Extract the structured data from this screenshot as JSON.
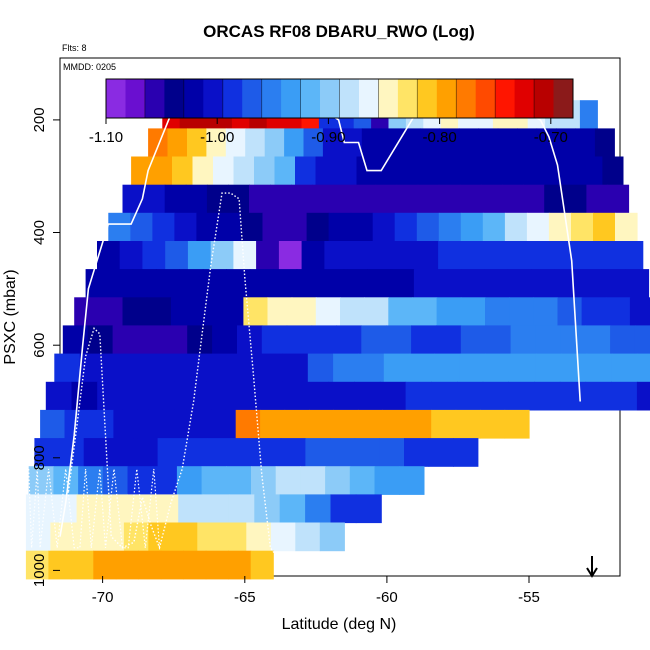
{
  "header": {
    "title": "ORCAS RF08 DBARU_RWO (Log)",
    "flts": "Flts: 8",
    "mmdd": "MMDD: 0205"
  },
  "chart_data": {
    "type": "heatmap",
    "title": "ORCAS RF08 DBARU_RWO (Log)",
    "xlabel": "Latitude (deg N)",
    "ylabel": "PSXC (mbar)",
    "xlim": [
      -71.5,
      -51.8
    ],
    "ylim": [
      1010,
      90
    ],
    "xticks": [
      -70,
      -65,
      -60,
      -55
    ],
    "xtick_labels": [
      "-70",
      "-65",
      "-60",
      "-55"
    ],
    "yticks": [
      200,
      400,
      600,
      800,
      1000
    ],
    "ytick_labels": [
      "200",
      "400",
      "600",
      "800",
      "1000"
    ],
    "colorbar": {
      "range": [
        -1.1,
        -0.68
      ],
      "ticks": [
        -1.1,
        -1.0,
        -0.9,
        -0.8,
        -0.7
      ],
      "tick_labels": [
        "-1.10",
        "-1.00",
        "-0.90",
        "-0.80",
        "-0.70"
      ],
      "colors": [
        "#8a2be2",
        "#6a0fd0",
        "#2a00b0",
        "#00008b",
        "#0000a8",
        "#0a10c8",
        "#1030e0",
        "#1e5be8",
        "#2b7ef0",
        "#3a9df5",
        "#5cb6f8",
        "#8ccbf8",
        "#bfe2fb",
        "#e8f5ff",
        "#fff6c0",
        "#ffe466",
        "#ffc820",
        "#ffa000",
        "#ff7a00",
        "#ff4a00",
        "#ff1500",
        "#e00000",
        "#b80000",
        "#8b1a1a"
      ]
    },
    "rows": [
      {
        "p": 190,
        "lat": [
          -67.9,
          -52.6
        ],
        "v": [
          -0.72,
          -0.71,
          -0.7,
          -0.71,
          -0.72,
          -0.71,
          -0.72,
          -0.73,
          -0.74,
          -0.98,
          -0.99,
          -0.97,
          -1.05,
          -0.9,
          -0.88,
          -0.86,
          -0.85,
          -0.87,
          -0.86,
          -0.84,
          -0.85,
          -0.86,
          -0.88,
          -0.89,
          -0.95
        ]
      },
      {
        "p": 240,
        "lat": [
          -68.4,
          -52.0
        ],
        "v": [
          -0.78,
          -0.8,
          -0.81,
          -0.84,
          -0.86,
          -0.88,
          -0.9,
          -0.93,
          -0.97,
          -1.0,
          -1.01,
          -1.02,
          -1.03,
          -1.02,
          -1.02,
          -1.03,
          -1.03,
          -1.02,
          -1.02,
          -1.03,
          -1.03,
          -1.02,
          -1.03,
          -1.04
        ]
      },
      {
        "p": 290,
        "lat": [
          -69.0,
          -51.7
        ],
        "v": [
          -0.79,
          -0.8,
          -0.82,
          -0.84,
          -0.86,
          -0.88,
          -0.9,
          -0.92,
          -0.99,
          -1.0,
          -1.01,
          -1.02,
          -1.03,
          -1.03,
          -1.03,
          -1.02,
          -1.02,
          -1.03,
          -1.03,
          -1.02,
          -1.02,
          -1.03,
          -1.03,
          -1.04
        ]
      },
      {
        "p": 340,
        "lat": [
          -69.3,
          -51.5
        ],
        "v": [
          -1.0,
          -1.01,
          -1.02,
          -1.03,
          -1.04,
          -1.04,
          -1.05,
          -1.05,
          -1.06,
          -1.06,
          -1.06,
          -1.06,
          -1.06,
          -1.06,
          -1.06,
          -1.06,
          -1.06,
          -1.05,
          -1.05,
          -1.05,
          -1.04,
          -1.04,
          -1.05,
          -1.06
        ]
      },
      {
        "p": 390,
        "lat": [
          -69.8,
          -51.2
        ],
        "v": [
          -0.95,
          -0.97,
          -0.98,
          -1.0,
          -1.02,
          -1.03,
          -1.04,
          -1.06,
          -1.05,
          -1.04,
          -1.03,
          -1.02,
          -1.0,
          -0.99,
          -0.97,
          -0.95,
          -0.93,
          -0.91,
          -0.88,
          -0.86,
          -0.84,
          -0.83,
          -0.82,
          -0.84
        ]
      },
      {
        "p": 440,
        "lat": [
          -70.2,
          -51.0
        ],
        "v": [
          -1.02,
          -1.0,
          -0.99,
          -0.97,
          -0.94,
          -0.9,
          -0.87,
          -1.06,
          -1.09,
          -1.03,
          -1.01,
          -1.01,
          -1.01,
          -1.0,
          -1.0,
          -0.99,
          -0.99,
          -0.99,
          -0.99,
          -0.98,
          -0.98,
          -0.98,
          -0.98,
          -0.99
        ]
      },
      {
        "p": 490,
        "lat": [
          -70.6,
          -50.8
        ],
        "v": [
          -1.03,
          -1.03,
          -1.03,
          -1.03,
          -1.03,
          -1.02,
          -1.02,
          -1.03,
          -1.03,
          -1.03,
          -1.03,
          -1.02,
          -1.02,
          -1.02,
          -1.01,
          -1.01,
          -1.01,
          -1.01,
          -1.01,
          -1.0,
          -1.0,
          -1.0,
          -1.0,
          -1.01
        ]
      },
      {
        "p": 540,
        "lat": [
          -71.0,
          -50.6
        ],
        "v": [
          -1.06,
          -1.05,
          -1.04,
          -1.04,
          -1.03,
          -1.03,
          -1.02,
          -0.83,
          -0.84,
          -0.85,
          -0.87,
          -0.88,
          -0.89,
          -0.91,
          -0.92,
          -0.93,
          -0.94,
          -0.95,
          -0.95,
          -0.96,
          -0.97,
          -0.98,
          -0.99,
          -1.0
        ]
      },
      {
        "p": 590,
        "lat": [
          -71.4,
          -50.4
        ],
        "v": [
          -1.03,
          -1.04,
          -1.05,
          -1.06,
          -1.05,
          -1.04,
          -1.03,
          -1.01,
          -0.99,
          -0.98,
          -0.99,
          -0.98,
          -0.97,
          -0.97,
          -0.98,
          -0.98,
          -0.97,
          -0.97,
          -0.96,
          -0.96,
          -0.96,
          -0.96,
          -0.97,
          -0.97
        ]
      },
      {
        "p": 640,
        "lat": [
          -71.7,
          -50.3
        ],
        "v": [
          -0.98,
          -1.01,
          -1.01,
          -1.0,
          -1.0,
          -1.0,
          -1.0,
          -1.0,
          -1.0,
          -1.0,
          -0.97,
          -0.95,
          -0.95,
          -0.94,
          -0.94,
          -0.94,
          -0.94,
          -0.94,
          -0.93,
          -0.93,
          -0.94,
          -0.93,
          -0.93,
          -0.94
        ]
      },
      {
        "p": 690,
        "lat": [
          -72.0,
          -50.3
        ],
        "v": [
          -1.01,
          -1.02,
          -1.01,
          -1.0,
          -1.0,
          -1.0,
          -1.0,
          -1.0,
          -1.0,
          -1.0,
          -1.0,
          -1.0,
          -1.0,
          -1.0,
          -0.99,
          -0.99,
          -0.98,
          -0.98,
          -0.98,
          -0.98,
          -0.98,
          -0.99,
          -0.99,
          -1.0
        ]
      },
      {
        "p": 740,
        "lat": [
          -72.2,
          -55.0
        ],
        "v": [
          -0.97,
          -0.99,
          -0.99,
          -1.0,
          -1.0,
          -1.0,
          -1.0,
          -1.0,
          -0.78,
          -0.79,
          -0.79,
          -0.79,
          -0.79,
          -0.8,
          -0.8,
          -0.8,
          -0.81,
          -0.81,
          -0.82,
          -0.82
        ]
      },
      {
        "p": 790,
        "lat": [
          -72.4,
          -56.8
        ],
        "v": [
          -0.98,
          -0.99,
          -1.0,
          -1.0,
          -1.0,
          -0.99,
          -0.99,
          -0.99,
          -0.98,
          -0.98,
          -0.98,
          -0.97,
          -0.97,
          -0.97,
          -0.97,
          -0.98,
          -0.98,
          -0.99
        ]
      },
      {
        "p": 840,
        "lat": [
          -72.6,
          -58.7
        ],
        "v": [
          -0.9,
          -0.92,
          -0.95,
          -0.97,
          -0.98,
          -0.98,
          -0.94,
          -0.92,
          -0.91,
          -0.9,
          -0.89,
          -0.88,
          -0.9,
          -0.92,
          -0.93,
          -0.94
        ]
      },
      {
        "p": 890,
        "lat": [
          -72.7,
          -60.2
        ],
        "v": [
          -0.87,
          -0.86,
          -0.85,
          -0.84,
          -0.84,
          -0.85,
          -0.88,
          -0.88,
          -0.89,
          -0.9,
          -0.92,
          -0.95,
          -0.98,
          -0.98
        ]
      },
      {
        "p": 940,
        "lat": [
          -72.7,
          -61.5
        ],
        "v": [
          -0.86,
          -0.85,
          -0.84,
          -0.84,
          -0.83,
          -0.82,
          -0.82,
          -0.83,
          -0.83,
          -0.84,
          -0.86,
          -0.88,
          -0.9
        ]
      },
      {
        "p": 990,
        "lat": [
          -72.7,
          -64.0
        ],
        "v": [
          -0.83,
          -0.82,
          -0.81,
          -0.8,
          -0.8,
          -0.8,
          -0.79,
          -0.79,
          -0.8,
          -0.8,
          -0.81
        ]
      }
    ],
    "flight_track_solid": {
      "lat": [
        -71.5,
        -71.3,
        -71.0,
        -70.7,
        -70.5,
        -70.2,
        -69.8,
        -69.4,
        -69.0,
        -68.6,
        -68.4,
        -68.0,
        -67.6,
        -65.0,
        -63.0,
        -62.0,
        -61.7,
        -61.5,
        -61.0,
        -60.7,
        -60.2,
        -59.0,
        -57.0,
        -55.5,
        -55.0,
        -54.6,
        -54.3,
        -54.0,
        -53.5,
        -53.2
      ],
      "p": [
        940,
        880,
        760,
        600,
        500,
        450,
        385,
        385,
        385,
        340,
        290,
        240,
        190,
        190,
        190,
        190,
        200,
        240,
        240,
        290,
        290,
        190,
        190,
        190,
        190,
        200,
        230,
        280,
        450,
        700
      ]
    },
    "flight_track_dotted": {
      "lat": [
        -71.2,
        -70.9,
        -70.6,
        -70.3,
        -70.1,
        -69.7,
        -69.3,
        -68.9,
        -68.6,
        -68.3,
        -68.0,
        -67.6,
        -67.2,
        -66.8,
        -66.5,
        -66.2,
        -65.8,
        -65.5,
        -65.2,
        -65.0,
        -64.7,
        -64.4,
        -64.1,
        -63.8
      ],
      "p": [
        860,
        740,
        620,
        570,
        580,
        940,
        960,
        950,
        870,
        920,
        960,
        880,
        820,
        700,
        580,
        460,
        330,
        330,
        340,
        480,
        650,
        830,
        960,
        980
      ]
    },
    "flight_track_loops": {
      "lat": [
        -72.6,
        -72.5,
        -72.3,
        -72.2,
        -71.9,
        -71.6,
        -71.3,
        -71.0,
        -70.8,
        -70.6,
        -70.4,
        -70.1,
        -69.9,
        -69.6,
        -69.3,
        -69.1,
        -68.8,
        -68.5,
        -68.2,
        -68.0
      ],
      "p": [
        820,
        960,
        820,
        960,
        820,
        960,
        820,
        960,
        960,
        820,
        960,
        820,
        960,
        820,
        960,
        960,
        820,
        960,
        820,
        960
      ]
    }
  }
}
